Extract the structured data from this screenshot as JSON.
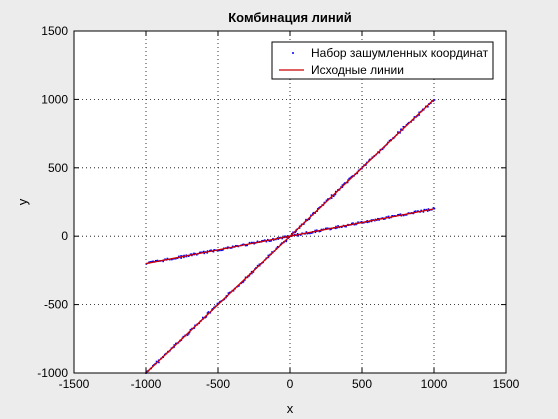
{
  "chart_data": {
    "type": "line",
    "title": "Комбинация линий",
    "xlabel": "x",
    "ylabel": "y",
    "xlim": [
      -1500,
      1500
    ],
    "ylim": [
      -1000,
      1500
    ],
    "xticks": [
      -1500,
      -1000,
      -500,
      0,
      500,
      1000,
      1500
    ],
    "yticks": [
      -1000,
      -500,
      0,
      500,
      1000,
      1500
    ],
    "xtick_labels": [
      "-1500",
      "-1000",
      "-500",
      "0",
      "500",
      "1000",
      "1500"
    ],
    "ytick_labels": [
      "-1000",
      "-500",
      "0",
      "500",
      "1000",
      "1500"
    ],
    "grid": true,
    "grid_style": "dotted",
    "legend_position": "top-right",
    "series": [
      {
        "name": "Набор зашумленных координат",
        "style": "points",
        "color": "#0000ff",
        "lines": [
          {
            "x": [
              -1000,
              1000
            ],
            "y": [
              -1000,
              1000
            ]
          },
          {
            "x": [
              -1000,
              1000
            ],
            "y": [
              -200,
              200
            ]
          }
        ]
      },
      {
        "name": "Исходные линии",
        "style": "line",
        "color": "#cc0000",
        "lines": [
          {
            "x": [
              -1000,
              1000
            ],
            "y": [
              -1000,
              1000
            ]
          },
          {
            "x": [
              -1000,
              1000
            ],
            "y": [
              -200,
              200
            ]
          }
        ]
      }
    ]
  }
}
